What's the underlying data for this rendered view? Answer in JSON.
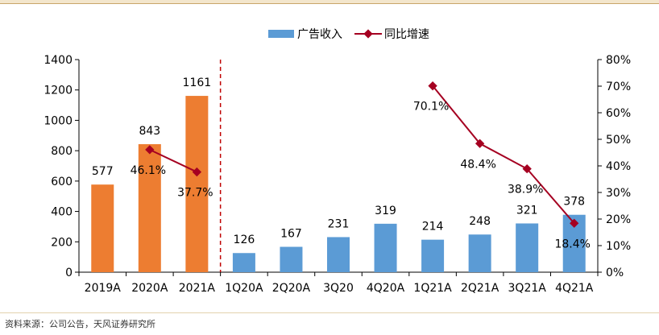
{
  "chart_data": {
    "type": "bar",
    "categories": [
      "2019A",
      "2020A",
      "2021A",
      "1Q20A",
      "2Q20A",
      "3Q20",
      "4Q20A",
      "1Q21A",
      "2Q21A",
      "3Q21A",
      "4Q21A"
    ],
    "series": [
      {
        "name": "广告收入",
        "type": "bar",
        "axis": "left",
        "values": [
          577,
          843,
          1161,
          126,
          167,
          231,
          319,
          214,
          248,
          321,
          378
        ],
        "value_labels": [
          "577",
          "843",
          "1161",
          "126",
          "167",
          "231",
          "319",
          "214",
          "248",
          "321",
          "378"
        ]
      },
      {
        "name": "同比增速",
        "type": "line",
        "axis": "right",
        "values": [
          null,
          46.1,
          37.7,
          null,
          null,
          null,
          null,
          70.1,
          48.4,
          38.9,
          18.4
        ],
        "value_labels": [
          null,
          "46.1%",
          "37.7%",
          null,
          null,
          null,
          null,
          "70.1%",
          "48.4%",
          "38.9%",
          "18.4%"
        ],
        "segments": [
          [
            1,
            2
          ],
          [
            7,
            8,
            9,
            10
          ]
        ]
      }
    ],
    "y_left": {
      "min": 0,
      "max": 1400,
      "ticks": [
        "0",
        "200",
        "400",
        "600",
        "800",
        "1000",
        "1200",
        "1400"
      ]
    },
    "y_right": {
      "min": 0,
      "max": 80,
      "ticks": [
        "0%",
        "10%",
        "20%",
        "30%",
        "40%",
        "50%",
        "60%",
        "70%",
        "80%"
      ]
    },
    "grid": false,
    "legend_position": "top",
    "divider_after_category": 2,
    "colors": {
      "annual_bar": "#ed7d31",
      "quarter_bar": "#5b9bd5",
      "line": "#a50021",
      "divider": "#c00000",
      "top_strip": "#f3e6cc"
    }
  },
  "source": "资料来源：公司公告，天风证券研究所"
}
